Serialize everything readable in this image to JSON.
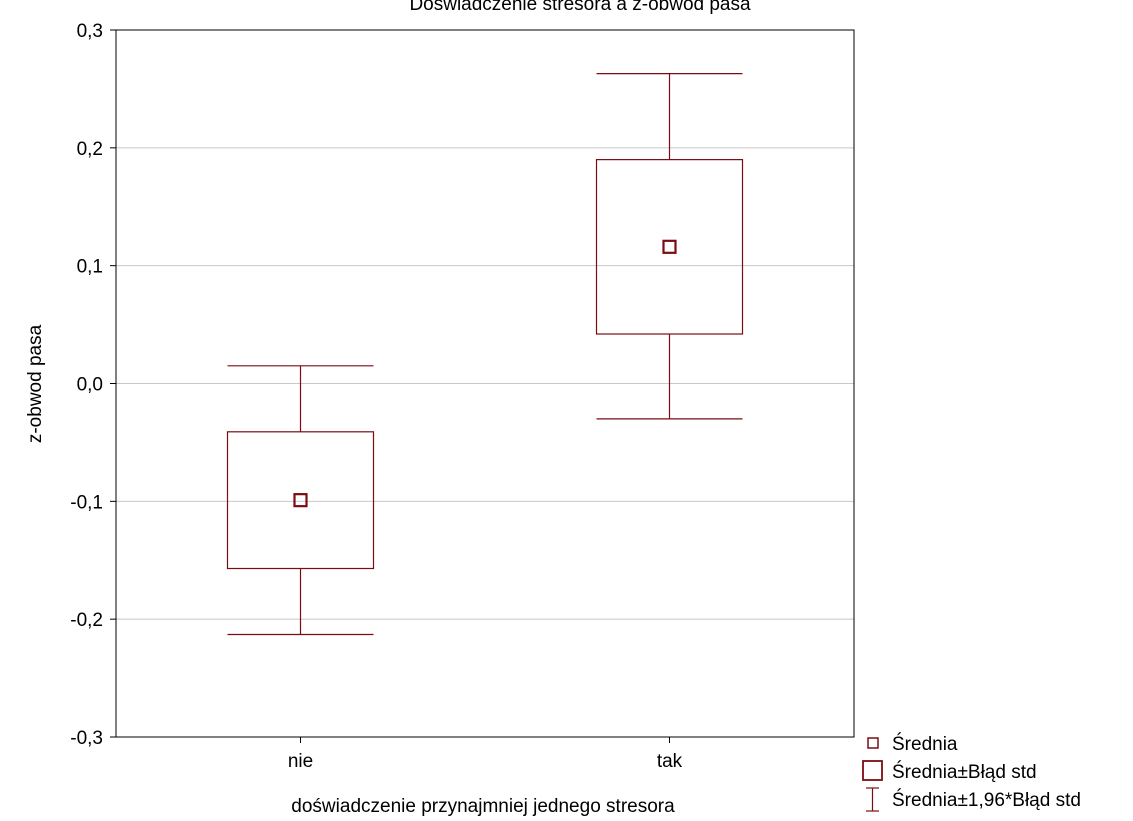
{
  "chart_data": {
    "type": "box",
    "title": "Doświadczenie stresora a z-obwód pasa",
    "xlabel": "doświadczenie przynajmniej jednego stresora",
    "ylabel": "z-obwod pasa",
    "ylim": [
      -0.3,
      0.3
    ],
    "yticks": [
      0.3,
      0.2,
      0.1,
      0.0,
      -0.1,
      -0.2,
      -0.3
    ],
    "ytick_labels": [
      "0,3",
      "0,2",
      "0,1",
      "0,0",
      "-0,1",
      "-0,2",
      "-0,3"
    ],
    "categories": [
      "nie",
      "tak"
    ],
    "groups": [
      {
        "category": "nie",
        "mean": -0.099,
        "se_low": -0.157,
        "se_high": -0.041,
        "ci_low": -0.213,
        "ci_high": 0.015
      },
      {
        "category": "tak",
        "mean": 0.116,
        "se_low": 0.042,
        "se_high": 0.19,
        "ci_low": -0.03,
        "ci_high": 0.263
      }
    ],
    "grid": true,
    "legend_position": "bottom-right",
    "legend": [
      "Średnia",
      "Średnia±Błąd std",
      "Średnia±1,96*Błąd std"
    ],
    "colors": {
      "series": "#7b0d12",
      "grid": "#c8c8c8",
      "axis": "#000000"
    }
  }
}
